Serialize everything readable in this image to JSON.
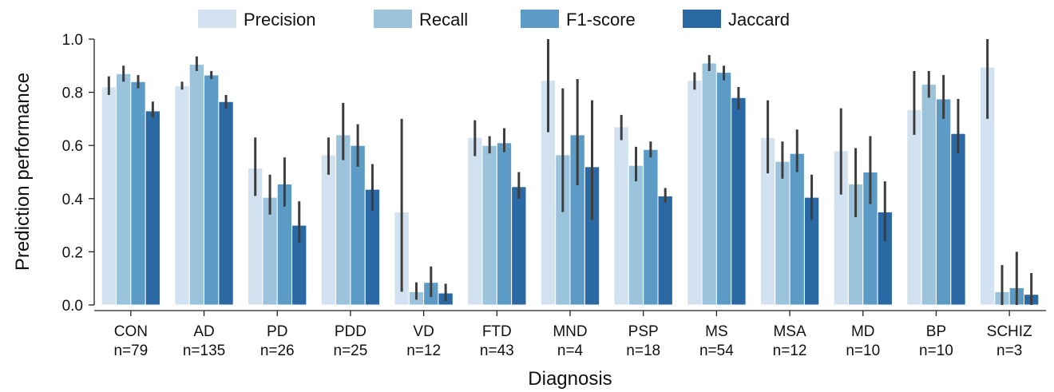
{
  "chart_data": {
    "type": "bar",
    "xlabel": "Diagnosis",
    "ylabel": "Prediction performance",
    "ylim": [
      0,
      1.0
    ],
    "yticks": [
      "0.0",
      "0.2",
      "0.4",
      "0.6",
      "0.8",
      "1.0"
    ],
    "legend_position": "top",
    "grid": false,
    "categories": [
      "CON",
      "AD",
      "PD",
      "PDD",
      "VD",
      "FTD",
      "MND",
      "PSP",
      "MS",
      "MSA",
      "MD",
      "BP",
      "SCHIZ"
    ],
    "category_counts": [
      "n=79",
      "n=135",
      "n=26",
      "n=25",
      "n=12",
      "n=43",
      "n=4",
      "n=18",
      "n=54",
      "n=12",
      "n=10",
      "n=10",
      "n=3"
    ],
    "series": [
      {
        "name": "Precision",
        "color": "#d3e2f1",
        "values": [
          0.82,
          0.825,
          0.515,
          0.565,
          0.35,
          0.63,
          0.845,
          0.67,
          0.845,
          0.63,
          0.58,
          0.735,
          0.895
        ],
        "error_low": [
          0.79,
          0.81,
          0.41,
          0.49,
          0.05,
          0.56,
          0.65,
          0.62,
          0.81,
          0.495,
          0.415,
          0.64,
          0.7
        ],
        "error_high": [
          0.86,
          0.84,
          0.63,
          0.63,
          0.7,
          0.695,
          1.0,
          0.715,
          0.875,
          0.77,
          0.74,
          0.88,
          1.0
        ]
      },
      {
        "name": "Recall",
        "color": "#9cc3dc",
        "values": [
          0.87,
          0.905,
          0.405,
          0.64,
          0.05,
          0.6,
          0.565,
          0.525,
          0.91,
          0.54,
          0.455,
          0.83,
          0.05
        ],
        "error_low": [
          0.84,
          0.88,
          0.34,
          0.545,
          0.02,
          0.57,
          0.35,
          0.465,
          0.88,
          0.475,
          0.33,
          0.78,
          0.0
        ],
        "error_high": [
          0.9,
          0.935,
          0.49,
          0.76,
          0.085,
          0.635,
          0.815,
          0.595,
          0.94,
          0.615,
          0.59,
          0.88,
          0.15
        ]
      },
      {
        "name": "F1-score",
        "color": "#5b9bc5",
        "values": [
          0.84,
          0.865,
          0.455,
          0.6,
          0.085,
          0.61,
          0.64,
          0.585,
          0.875,
          0.57,
          0.5,
          0.775,
          0.065
        ],
        "error_low": [
          0.815,
          0.85,
          0.37,
          0.52,
          0.03,
          0.575,
          0.45,
          0.555,
          0.845,
          0.5,
          0.38,
          0.7,
          0.0
        ],
        "error_high": [
          0.865,
          0.88,
          0.555,
          0.68,
          0.145,
          0.665,
          0.85,
          0.615,
          0.9,
          0.66,
          0.635,
          0.865,
          0.2
        ]
      },
      {
        "name": "Jaccard",
        "color": "#2b69a5",
        "values": [
          0.73,
          0.765,
          0.3,
          0.435,
          0.045,
          0.445,
          0.52,
          0.41,
          0.78,
          0.405,
          0.35,
          0.645,
          0.04
        ],
        "error_low": [
          0.705,
          0.74,
          0.235,
          0.355,
          0.015,
          0.4,
          0.32,
          0.385,
          0.735,
          0.32,
          0.24,
          0.57,
          0.0
        ],
        "error_high": [
          0.765,
          0.79,
          0.39,
          0.53,
          0.08,
          0.5,
          0.77,
          0.44,
          0.82,
          0.49,
          0.465,
          0.775,
          0.12
        ]
      }
    ]
  }
}
